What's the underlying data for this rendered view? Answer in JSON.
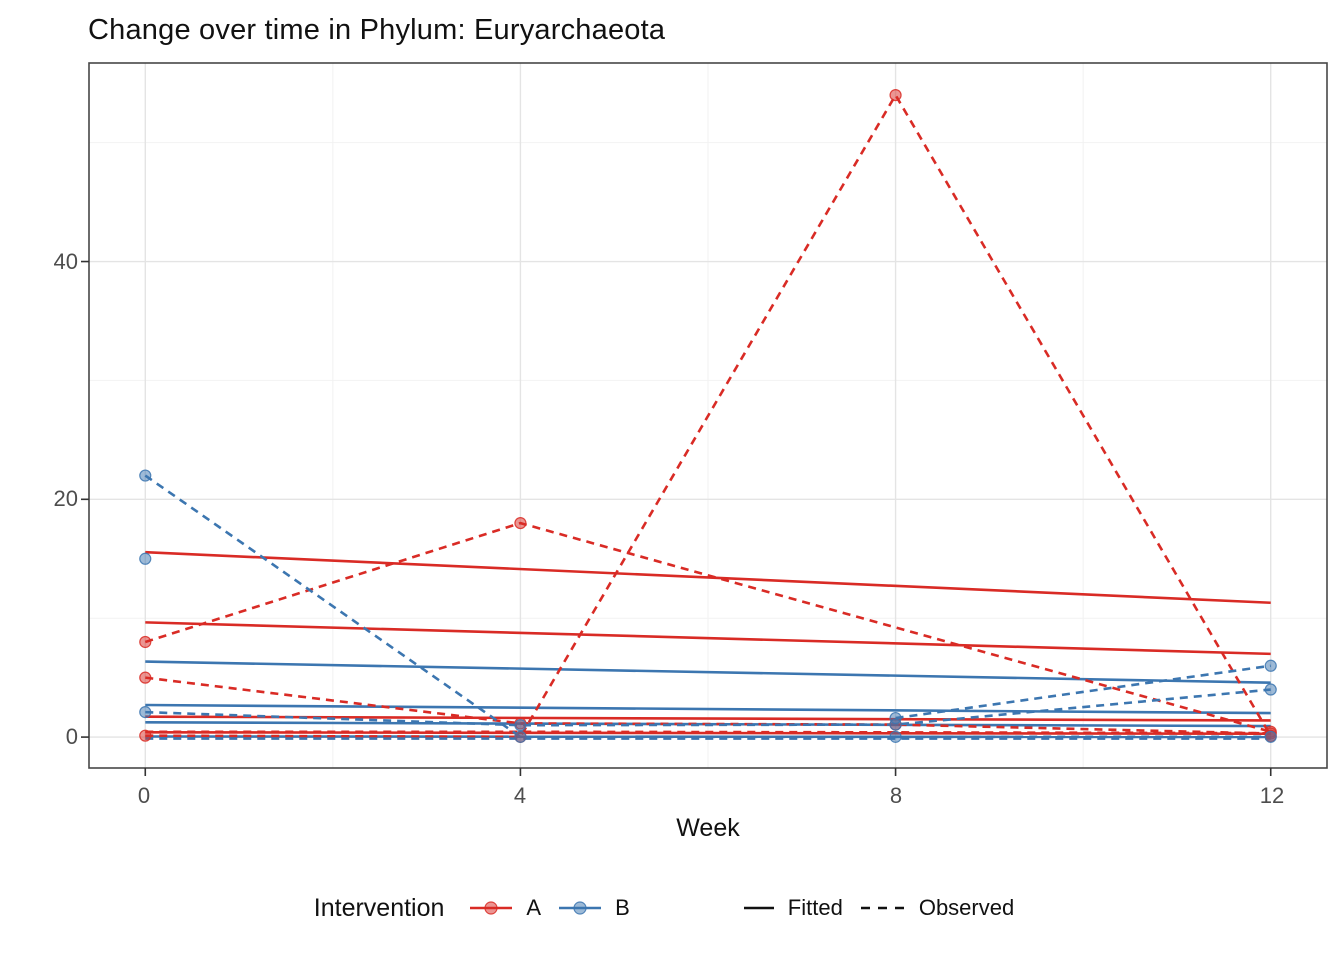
{
  "chart_data": {
    "type": "line",
    "title": "Change over time in Phylum: Euryarchaeota",
    "xlabel": "Week",
    "ylabel": "",
    "x_ticks": [
      0,
      4,
      8,
      12
    ],
    "y_ticks": [
      0,
      20,
      40
    ],
    "x_minor": [
      2,
      6,
      10
    ],
    "y_minor": [
      10,
      30,
      50
    ],
    "xlim": [
      -0.6,
      12.6
    ],
    "ylim": [
      -2.6,
      56.7
    ],
    "grid": true,
    "legend_position": "bottom",
    "colors": {
      "A": "#D92B25",
      "B": "#3C76B0",
      "axis_text": "#4D4D4D",
      "title_text": "#111111",
      "grid_major": "#E4E4E4",
      "grid_minor": "#F2F2F2",
      "panel_border": "#474747",
      "tick_mark": "#333333"
    },
    "legend": {
      "title": "Intervention",
      "color_items": [
        {
          "label": "A",
          "color": "#D92B25"
        },
        {
          "label": "B",
          "color": "#3C76B0"
        }
      ],
      "linetype_items": [
        {
          "label": "Fitted",
          "dash": "solid"
        },
        {
          "label": "Observed",
          "dash": "dashed"
        }
      ]
    },
    "series": [
      {
        "name": "A-fitted-1",
        "group": "A",
        "kind": "fitted",
        "x": [
          0,
          12
        ],
        "y": [
          15.55,
          11.3
        ],
        "points": false
      },
      {
        "name": "A-fitted-2",
        "group": "A",
        "kind": "fitted",
        "x": [
          0,
          12
        ],
        "y": [
          9.65,
          7.0
        ],
        "points": false
      },
      {
        "name": "A-fitted-3",
        "group": "A",
        "kind": "fitted",
        "x": [
          0,
          12
        ],
        "y": [
          1.72,
          1.4
        ],
        "points": false
      },
      {
        "name": "A-fitted-4",
        "group": "A",
        "kind": "fitted",
        "x": [
          0,
          12
        ],
        "y": [
          0.4,
          0.28
        ],
        "points": false
      },
      {
        "name": "B-fitted-1",
        "group": "B",
        "kind": "fitted",
        "x": [
          0,
          12
        ],
        "y": [
          6.35,
          4.58
        ],
        "points": false
      },
      {
        "name": "B-fitted-2",
        "group": "B",
        "kind": "fitted",
        "x": [
          0,
          12
        ],
        "y": [
          2.7,
          2.02
        ],
        "points": false
      },
      {
        "name": "B-fitted-3",
        "group": "B",
        "kind": "fitted",
        "x": [
          0,
          12
        ],
        "y": [
          1.24,
          0.93
        ],
        "points": false
      },
      {
        "name": "B-fitted-4",
        "group": "B",
        "kind": "fitted",
        "x": [
          0,
          12
        ],
        "y": [
          0.05,
          0.01
        ],
        "points": false
      },
      {
        "name": "A-observed-1",
        "group": "A",
        "kind": "observed",
        "x": [
          0,
          4,
          12
        ],
        "y": [
          8,
          18,
          0.45
        ],
        "points": true
      },
      {
        "name": "A-observed-2",
        "group": "A",
        "kind": "observed",
        "x": [
          0,
          4,
          8,
          12
        ],
        "y": [
          5,
          1.15,
          1.05,
          0.3
        ],
        "points": true
      },
      {
        "name": "A-observed-3-spike",
        "group": "A",
        "kind": "observed",
        "x": [
          0,
          4,
          8,
          12
        ],
        "y": [
          0.12,
          0.02,
          54,
          0.1
        ],
        "points": true
      },
      {
        "name": "A-observed-4",
        "group": "A",
        "kind": "observed",
        "x": [
          0,
          4,
          8,
          12
        ],
        "y": [
          0.45,
          0.45,
          0.4,
          0.33
        ],
        "points": false
      },
      {
        "name": "B-observed-1",
        "group": "B",
        "kind": "observed",
        "x": [
          0,
          4,
          8,
          12
        ],
        "y": [
          22,
          0.02,
          0.02,
          0.02
        ],
        "points": true
      },
      {
        "name": "B-observed-2",
        "group": "B",
        "kind": "observed",
        "x": [
          0,
          4,
          8,
          12
        ],
        "y": [
          2.1,
          1.0,
          1.05,
          4.0
        ],
        "points": true
      },
      {
        "name": "B-observed-3",
        "group": "B",
        "kind": "observed",
        "x": [
          8,
          12
        ],
        "y": [
          1.6,
          6.0
        ],
        "points": true
      },
      {
        "name": "B-observed-4",
        "group": "B",
        "kind": "observed",
        "x": [
          0,
          4,
          8,
          12
        ],
        "y": [
          -0.12,
          -0.12,
          -0.12,
          -0.12
        ],
        "points": false
      },
      {
        "name": "B-observed-5-single",
        "group": "B",
        "kind": "observed",
        "x": [
          0
        ],
        "y": [
          15
        ],
        "points": true
      }
    ]
  }
}
